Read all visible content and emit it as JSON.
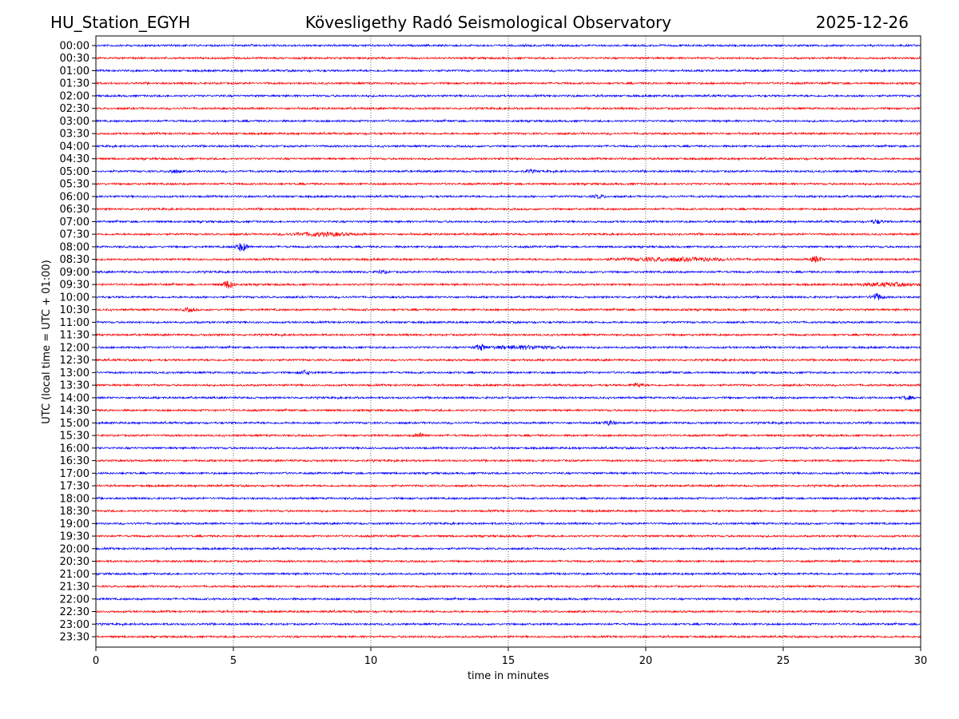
{
  "header": {
    "station": "HU_Station_EGYH",
    "observatory": "Kövesligethy Radó Seismological Observatory",
    "date": "2025-12-26"
  },
  "chart_data": {
    "type": "line",
    "title": "Kövesligethy Radó Seismological Observatory",
    "xlabel": "time in minutes",
    "ylabel": "UTC (local time = UTC + 01:00)",
    "xlim": [
      0,
      30
    ],
    "xticks": [
      0,
      5,
      10,
      15,
      20,
      25,
      30
    ],
    "grid": "vertical dotted at x ticks",
    "row_labels": [
      "00:00",
      "00:30",
      "01:00",
      "01:30",
      "02:00",
      "02:30",
      "03:00",
      "03:30",
      "04:00",
      "04:30",
      "05:00",
      "05:30",
      "06:00",
      "06:30",
      "07:00",
      "07:30",
      "08:00",
      "08:30",
      "09:00",
      "09:30",
      "10:00",
      "10:30",
      "11:00",
      "11:30",
      "12:00",
      "12:30",
      "13:00",
      "13:30",
      "14:00",
      "14:30",
      "15:00",
      "15:30",
      "16:00",
      "16:30",
      "17:00",
      "17:30",
      "18:00",
      "18:30",
      "19:00",
      "19:30",
      "20:00",
      "20:30",
      "21:00",
      "21:30",
      "22:00",
      "22:30",
      "23:00",
      "23:30"
    ],
    "series_colors": [
      "#0000ff",
      "#ff0000"
    ],
    "events": [
      {
        "row": "05:00",
        "minute": 2.8,
        "amp": 2
      },
      {
        "row": "05:00",
        "minute": 15.8,
        "amp": 1.6
      },
      {
        "row": "06:00",
        "minute": 18.3,
        "amp": 1.8
      },
      {
        "row": "07:00",
        "minute": 28.4,
        "amp": 2
      },
      {
        "row": "07:30",
        "minute": 8.2,
        "amp": 2,
        "duration": 2
      },
      {
        "row": "08:00",
        "minute": 5.3,
        "amp": 5
      },
      {
        "row": "08:30",
        "minute": 26.2,
        "amp": 3.5
      },
      {
        "row": "08:30",
        "minute": 21,
        "amp": 1.8,
        "duration": 4
      },
      {
        "row": "09:00",
        "minute": 10.4,
        "amp": 1.6
      },
      {
        "row": "09:30",
        "minute": 4.8,
        "amp": 4.5
      },
      {
        "row": "09:30",
        "minute": 28.8,
        "amp": 1.8,
        "duration": 2
      },
      {
        "row": "10:00",
        "minute": 28.4,
        "amp": 4
      },
      {
        "row": "10:30",
        "minute": 3.4,
        "amp": 2
      },
      {
        "row": "12:00",
        "minute": 14,
        "amp": 3.5
      },
      {
        "row": "12:00",
        "minute": 15.5,
        "amp": 1.8,
        "duration": 2.5
      },
      {
        "row": "13:00",
        "minute": 7.6,
        "amp": 2
      },
      {
        "row": "13:30",
        "minute": 19.7,
        "amp": 2
      },
      {
        "row": "14:00",
        "minute": 29.5,
        "amp": 2
      },
      {
        "row": "15:00",
        "minute": 18.7,
        "amp": 2.5
      },
      {
        "row": "15:30",
        "minute": 11.8,
        "amp": 2.5
      }
    ]
  }
}
